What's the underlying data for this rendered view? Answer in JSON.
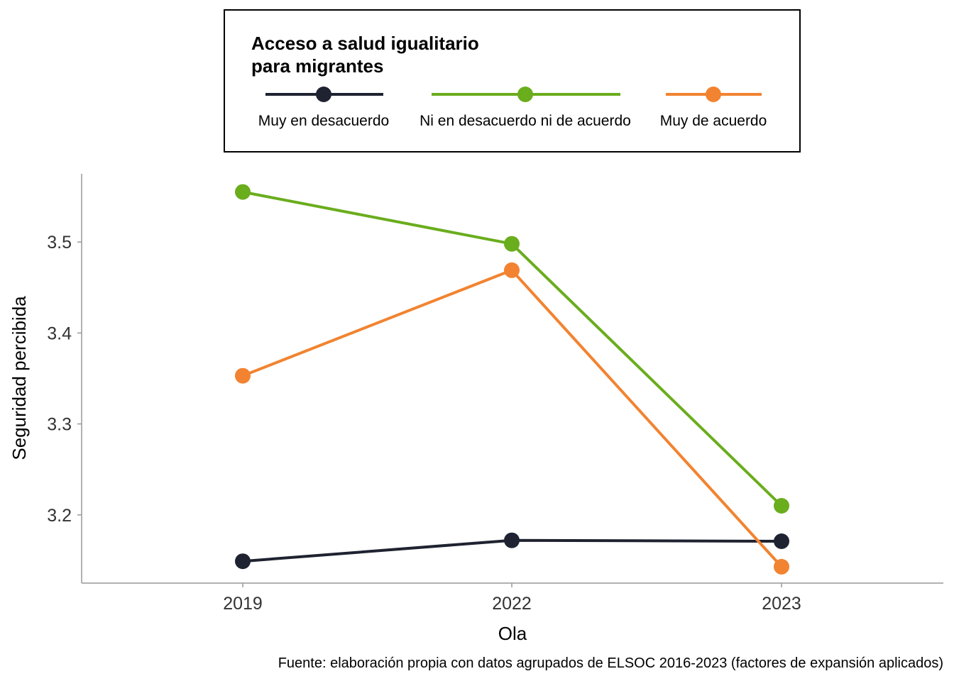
{
  "chart_data": {
    "type": "line",
    "legend": {
      "title_lines": [
        "Acceso a salud igualitario",
        "para migrantes"
      ],
      "position": "top"
    },
    "categories": [
      "2019",
      "2022",
      "2023"
    ],
    "xlabel": "Ola",
    "ylabel": "Seguridad percibida",
    "yticks": [
      "3.2",
      "3.3",
      "3.4",
      "3.5"
    ],
    "ylim": [
      3.125,
      3.575
    ],
    "grid": false,
    "series": [
      {
        "name": "Muy en desacuerdo",
        "color": "#1f2230",
        "values": [
          3.149,
          3.172,
          3.171
        ]
      },
      {
        "name": "Ni en desacuerdo ni de acuerdo",
        "color": "#6aad1d",
        "values": [
          3.555,
          3.498,
          3.21
        ]
      },
      {
        "name": "Muy de acuerdo",
        "color": "#f28330",
        "values": [
          3.353,
          3.469,
          3.143
        ]
      }
    ],
    "caption": "Fuente: elaboración propia con datos agrupados de ELSOC 2016-2023 (factores de expansión aplicados)"
  }
}
